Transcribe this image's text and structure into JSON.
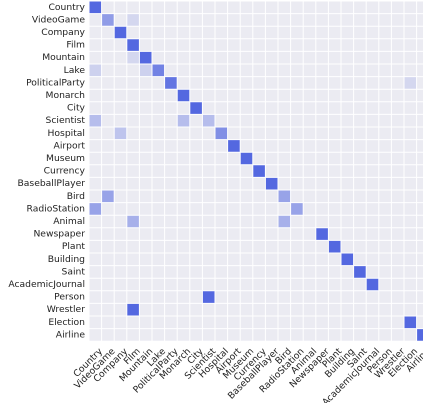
{
  "chart_data": {
    "type": "heatmap",
    "title": "",
    "xlabel": "",
    "ylabel": "",
    "grid": true,
    "x_categories": [
      "Country",
      "VideoGame",
      "Company",
      "Film",
      "Mountain",
      "Lake",
      "PoliticalParty",
      "Monarch",
      "City",
      "Scientist",
      "Hospital",
      "Airport",
      "Museum",
      "Currency",
      "BaseballPlayer",
      "Bird",
      "RadioStation",
      "Animal",
      "Newspaper",
      "Plant",
      "Building",
      "Saint",
      "AcademicJournal",
      "Person",
      "Wrestler",
      "Election",
      "Airline"
    ],
    "y_categories": [
      "Country",
      "VideoGame",
      "Company",
      "Film",
      "Mountain",
      "Lake",
      "PoliticalParty",
      "Monarch",
      "City",
      "Scientist",
      "Hospital",
      "Airport",
      "Museum",
      "Currency",
      "BaseballPlayer",
      "Bird",
      "RadioStation",
      "Animal",
      "Newspaper",
      "Plant",
      "Building",
      "Saint",
      "AcademicJournal",
      "Person",
      "Wrestler",
      "Election",
      "Airline"
    ],
    "cells": [
      {
        "row": "Country",
        "col": "Country",
        "value": 1.0
      },
      {
        "row": "VideoGame",
        "col": "VideoGame",
        "value": 0.6
      },
      {
        "row": "VideoGame",
        "col": "Film",
        "value": 0.15
      },
      {
        "row": "Company",
        "col": "Company",
        "value": 1.0
      },
      {
        "row": "Film",
        "col": "Film",
        "value": 1.0
      },
      {
        "row": "Mountain",
        "col": "Film",
        "value": 0.15
      },
      {
        "row": "Mountain",
        "col": "Mountain",
        "value": 1.0
      },
      {
        "row": "Lake",
        "col": "Country",
        "value": 0.2
      },
      {
        "row": "Lake",
        "col": "Mountain",
        "value": 0.2
      },
      {
        "row": "Lake",
        "col": "Lake",
        "value": 0.8
      },
      {
        "row": "PoliticalParty",
        "col": "PoliticalParty",
        "value": 0.9
      },
      {
        "row": "PoliticalParty",
        "col": "Election",
        "value": 0.15
      },
      {
        "row": "Monarch",
        "col": "Monarch",
        "value": 1.0
      },
      {
        "row": "City",
        "col": "City",
        "value": 1.0
      },
      {
        "row": "Scientist",
        "col": "Country",
        "value": 0.35
      },
      {
        "row": "Scientist",
        "col": "Monarch",
        "value": 0.35
      },
      {
        "row": "Scientist",
        "col": "Scientist",
        "value": 0.35
      },
      {
        "row": "Hospital",
        "col": "Company",
        "value": 0.3
      },
      {
        "row": "Hospital",
        "col": "Hospital",
        "value": 0.7
      },
      {
        "row": "Airport",
        "col": "Airport",
        "value": 1.0
      },
      {
        "row": "Museum",
        "col": "Museum",
        "value": 1.0
      },
      {
        "row": "Currency",
        "col": "Currency",
        "value": 1.0
      },
      {
        "row": "BaseballPlayer",
        "col": "BaseballPlayer",
        "value": 1.0
      },
      {
        "row": "Bird",
        "col": "VideoGame",
        "value": 0.55
      },
      {
        "row": "Bird",
        "col": "Bird",
        "value": 0.55
      },
      {
        "row": "RadioStation",
        "col": "Country",
        "value": 0.55
      },
      {
        "row": "RadioStation",
        "col": "RadioStation",
        "value": 0.55
      },
      {
        "row": "Animal",
        "col": "Film",
        "value": 0.45
      },
      {
        "row": "Animal",
        "col": "Bird",
        "value": 0.45
      },
      {
        "row": "Newspaper",
        "col": "Newspaper",
        "value": 1.0
      },
      {
        "row": "Plant",
        "col": "Plant",
        "value": 1.0
      },
      {
        "row": "Building",
        "col": "Building",
        "value": 1.0
      },
      {
        "row": "Saint",
        "col": "Saint",
        "value": 1.0
      },
      {
        "row": "AcademicJournal",
        "col": "AcademicJournal",
        "value": 1.0
      },
      {
        "row": "Person",
        "col": "Scientist",
        "value": 1.0
      },
      {
        "row": "Wrestler",
        "col": "Film",
        "value": 1.0
      },
      {
        "row": "Election",
        "col": "Election",
        "value": 1.0
      },
      {
        "row": "Airline",
        "col": "Airline",
        "value": 1.0
      }
    ],
    "colors": {
      "background": "#ebebf2",
      "grid": "#ffffff",
      "high": "#5468e0"
    }
  }
}
